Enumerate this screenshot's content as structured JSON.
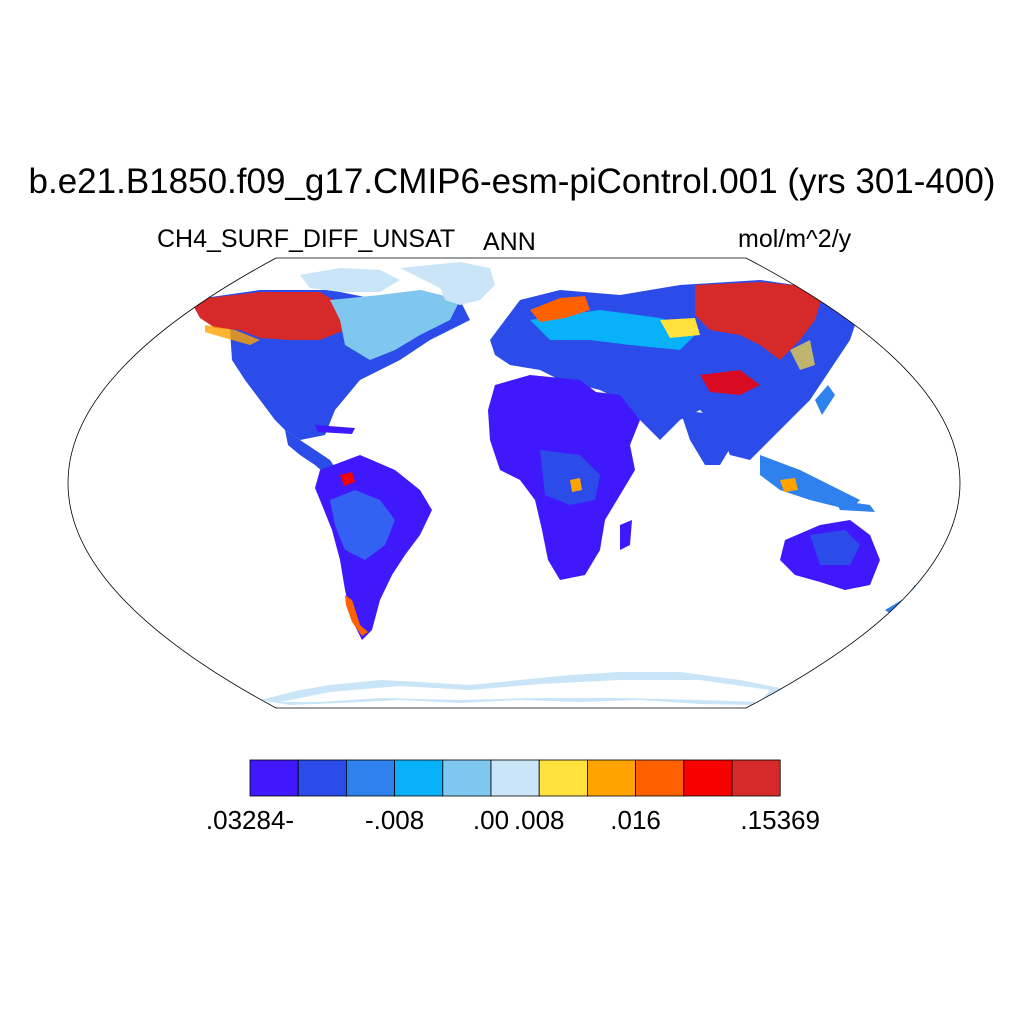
{
  "title": "b.e21.B1850.f09_g17.CMIP6-esm-piControl.001 (yrs 301-400)",
  "left_subtitle": "CH4_SURF_DIFF_UNSAT",
  "center_subtitle": "ANN",
  "right_subtitle": "mol/m^2/y",
  "colorbar": {
    "colors": [
      "#3f19fb",
      "#2b4ce8",
      "#2f81ee",
      "#09b1fb",
      "#7fc7ef",
      "#c9e5f7",
      "#ffe23c",
      "#ffa300",
      "#ff6000",
      "#f70000",
      "#d62a2a"
    ],
    "labels": [
      ".03284-",
      "-.008",
      ".00",
      ".008",
      ".016",
      ".15369"
    ],
    "label_positions_index": [
      0,
      3,
      5,
      6,
      8,
      11
    ]
  },
  "map": {
    "projection": "Robinson",
    "ocean_color": "#ffffff",
    "outline_color": "#000000"
  }
}
